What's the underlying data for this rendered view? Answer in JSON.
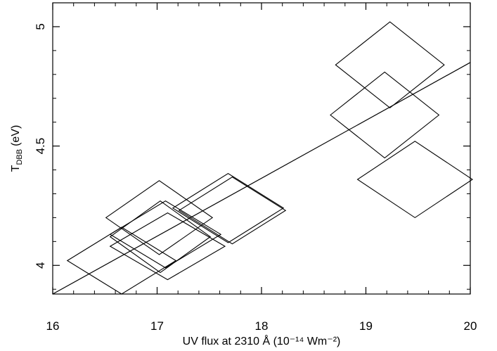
{
  "chart_data": {
    "type": "scatter",
    "xlabel": "UV flux at 2310 Å (10⁻¹⁴ Wm⁻²)",
    "ylabel": "T_DBB (eV)",
    "ylabel_main": "T",
    "ylabel_sub": "DBB",
    "ylabel_unit": "(eV)",
    "xlim": [
      16,
      20
    ],
    "ylim": [
      3.88,
      5.1
    ],
    "x_ticks": [
      16,
      17,
      18,
      19,
      20
    ],
    "x_tick_labels": [
      "16",
      "17",
      "18",
      "19",
      "20"
    ],
    "y_ticks": [
      4,
      4.5,
      5
    ],
    "y_tick_labels": [
      "4",
      "4.5",
      "5"
    ],
    "grid": false,
    "marker": "diamond (error region)",
    "points": [
      {
        "x": 16.66,
        "y": 4.02,
        "xerr": 0.52,
        "yerr": 0.14
      },
      {
        "x": 17.02,
        "y": 4.2,
        "xerr": 0.51,
        "yerr": 0.155
      },
      {
        "x": 17.03,
        "y": 4.12,
        "xerr": 0.48,
        "yerr": 0.15
      },
      {
        "x": 17.08,
        "y": 4.13,
        "xerr": 0.53,
        "yerr": 0.14
      },
      {
        "x": 17.1,
        "y": 4.08,
        "xerr": 0.55,
        "yerr": 0.14
      },
      {
        "x": 17.68,
        "y": 4.24,
        "xerr": 0.53,
        "yerr": 0.145
      },
      {
        "x": 17.72,
        "y": 4.23,
        "xerr": 0.51,
        "yerr": 0.14
      },
      {
        "x": 19.23,
        "y": 4.84,
        "xerr": 0.52,
        "yerr": 0.18
      },
      {
        "x": 19.18,
        "y": 4.63,
        "xerr": 0.52,
        "yerr": 0.18
      },
      {
        "x": 19.47,
        "y": 4.36,
        "xerr": 0.55,
        "yerr": 0.16
      }
    ],
    "fit_line": {
      "x": [
        16,
        20
      ],
      "y": [
        3.88,
        4.85
      ]
    }
  }
}
